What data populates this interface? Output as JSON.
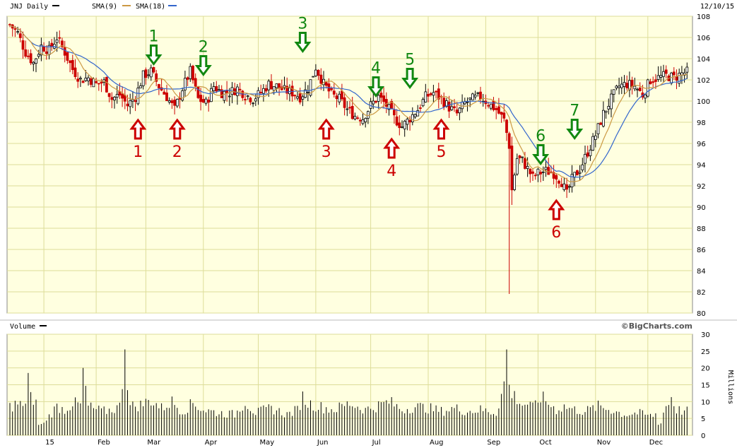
{
  "header": {
    "symbol_label": "JNJ Daily",
    "sma9_label": "SMA(9)",
    "sma18_label": "SMA(18)",
    "date": "12/10/15",
    "volume_label": "Volume",
    "copyright": "©BigCharts.com",
    "volume_unit": "Millions"
  },
  "colors": {
    "background": "#ffffe0",
    "grid": "#dddd99",
    "up_candle": "#000000",
    "down_candle": "#cc0000",
    "sma9": "#cc9944",
    "sma18": "#3366cc",
    "buy_marker": "#cc0000",
    "sell_marker": "#118811"
  },
  "chart_data": [
    {
      "type": "candlestick",
      "title": "JNJ Daily",
      "ylim": [
        80,
        108
      ],
      "y_ticks": [
        80,
        82,
        84,
        86,
        88,
        90,
        92,
        94,
        96,
        98,
        100,
        102,
        104,
        106,
        108
      ],
      "x_ticks": [
        "15",
        "Feb",
        "Mar",
        "Apr",
        "May",
        "Jun",
        "Jul",
        "Aug",
        "Sep",
        "Oct",
        "Nov",
        "Dec"
      ],
      "legend": [
        "JNJ Daily",
        "SMA(9)",
        "SMA(18)"
      ],
      "price_path": [
        [
          0,
          107.2
        ],
        [
          3,
          106.4
        ],
        [
          6,
          104.6
        ],
        [
          9,
          103.6
        ],
        [
          12,
          105.2
        ],
        [
          15,
          104.8
        ],
        [
          18,
          106
        ],
        [
          21,
          104.6
        ],
        [
          24,
          103
        ],
        [
          27,
          102
        ],
        [
          30,
          102.2
        ],
        [
          33,
          101.6
        ],
        [
          36,
          101.8
        ],
        [
          39,
          100.2
        ],
        [
          42,
          100.6
        ],
        [
          45,
          99.6
        ],
        [
          48,
          100.4
        ],
        [
          51,
          102.4
        ],
        [
          54,
          102.8
        ],
        [
          57,
          101.4
        ],
        [
          60,
          100.4
        ],
        [
          63,
          99.2
        ],
        [
          66,
          101.2
        ],
        [
          69,
          102.8
        ],
        [
          72,
          100.2
        ],
        [
          75,
          99.8
        ],
        [
          78,
          101.4
        ],
        [
          81,
          100.8
        ],
        [
          84,
          100.8
        ],
        [
          87,
          101.2
        ],
        [
          90,
          100.6
        ],
        [
          93,
          100.2
        ],
        [
          96,
          100.8
        ],
        [
          99,
          101.6
        ],
        [
          102,
          101.4
        ],
        [
          105,
          101
        ],
        [
          108,
          100.8
        ],
        [
          111,
          100.4
        ],
        [
          114,
          101.2
        ],
        [
          117,
          103.2
        ],
        [
          120,
          101.6
        ],
        [
          123,
          100.6
        ],
        [
          126,
          100.2
        ],
        [
          129,
          99.2
        ],
        [
          132,
          98.6
        ],
        [
          135,
          98.4
        ],
        [
          138,
          99.6
        ],
        [
          141,
          100.4
        ],
        [
          144,
          99.6
        ],
        [
          147,
          98.4
        ],
        [
          150,
          97.6
        ],
        [
          153,
          98.4
        ],
        [
          156,
          99.2
        ],
        [
          159,
          100.4
        ],
        [
          162,
          100.8
        ],
        [
          165,
          100.2
        ],
        [
          168,
          99.4
        ],
        [
          171,
          98.8
        ],
        [
          174,
          99.8
        ],
        [
          177,
          100.2
        ],
        [
          180,
          100.4
        ],
        [
          183,
          99.8
        ],
        [
          186,
          99.2
        ],
        [
          189,
          98.2
        ],
        [
          191,
          95.8
        ],
        [
          192,
          91.6
        ],
        [
          194,
          94.6
        ],
        [
          196,
          94.4
        ],
        [
          198,
          93.6
        ],
        [
          200,
          92.8
        ],
        [
          202,
          93.2
        ],
        [
          205,
          93.4
        ],
        [
          208,
          93.2
        ],
        [
          211,
          92.4
        ],
        [
          213,
          91.2
        ],
        [
          215,
          92.6
        ],
        [
          218,
          93.6
        ],
        [
          221,
          95.2
        ],
        [
          224,
          96.8
        ],
        [
          227,
          98.8
        ],
        [
          230,
          100.2
        ],
        [
          233,
          101.4
        ],
        [
          236,
          101.6
        ],
        [
          239,
          101.4
        ],
        [
          242,
          100.6
        ],
        [
          245,
          102
        ],
        [
          248,
          102.2
        ],
        [
          251,
          102.4
        ],
        [
          254,
          102.2
        ],
        [
          257,
          102.6
        ],
        [
          260,
          102.8
        ]
      ],
      "candle_count": 260,
      "sma9_periods": 9,
      "sma18_periods": 18,
      "buy_markers": [
        {
          "label": "1",
          "day": 49,
          "price": 98.2
        },
        {
          "label": "2",
          "day": 64,
          "price": 98.2
        },
        {
          "label": "3",
          "day": 121,
          "price": 98.2
        },
        {
          "label": "4",
          "day": 146,
          "price": 96.4
        },
        {
          "label": "5",
          "day": 165,
          "price": 98.2
        },
        {
          "label": "6",
          "day": 209,
          "price": 90.6
        }
      ],
      "sell_markers": [
        {
          "label": "1",
          "day": 55,
          "price": 103.5
        },
        {
          "label": "2",
          "day": 74,
          "price": 102.5
        },
        {
          "label": "3",
          "day": 112,
          "price": 104.7
        },
        {
          "label": "4",
          "day": 140,
          "price": 100.5
        },
        {
          "label": "5",
          "day": 153,
          "price": 101.3
        },
        {
          "label": "6",
          "day": 203,
          "price": 94.1
        },
        {
          "label": "7",
          "day": 216,
          "price": 96.5
        }
      ]
    },
    {
      "type": "bar",
      "title": "Volume",
      "ylabel": "Millions",
      "ylim": [
        0,
        30
      ],
      "y_ticks": [
        0,
        5,
        10,
        15,
        20,
        25,
        30
      ],
      "volume_path": [
        [
          0,
          9
        ],
        [
          3,
          10
        ],
        [
          6,
          8.5
        ],
        [
          7,
          18.5
        ],
        [
          9,
          9
        ],
        [
          10,
          10
        ],
        [
          12,
          4
        ],
        [
          15,
          6
        ],
        [
          18,
          9
        ],
        [
          21,
          8
        ],
        [
          24,
          10
        ],
        [
          27,
          9.5
        ],
        [
          28,
          20
        ],
        [
          30,
          9
        ],
        [
          33,
          8
        ],
        [
          36,
          7.5
        ],
        [
          39,
          8
        ],
        [
          42,
          9
        ],
        [
          44,
          25.5
        ],
        [
          46,
          9
        ],
        [
          50,
          9.5
        ],
        [
          54,
          11
        ],
        [
          58,
          8.5
        ],
        [
          62,
          10.5
        ],
        [
          66,
          7.5
        ],
        [
          70,
          10
        ],
        [
          74,
          8
        ],
        [
          80,
          7
        ],
        [
          86,
          6.5
        ],
        [
          90,
          10.5
        ],
        [
          94,
          7
        ],
        [
          100,
          8.5
        ],
        [
          106,
          6.5
        ],
        [
          110,
          8
        ],
        [
          112,
          12
        ],
        [
          114,
          10
        ],
        [
          118,
          9
        ],
        [
          124,
          8
        ],
        [
          130,
          10
        ],
        [
          136,
          8
        ],
        [
          140,
          9
        ],
        [
          145,
          10.5
        ],
        [
          150,
          8
        ],
        [
          155,
          9
        ],
        [
          160,
          8.5
        ],
        [
          165,
          7.5
        ],
        [
          170,
          8.5
        ],
        [
          175,
          7.5
        ],
        [
          180,
          8
        ],
        [
          186,
          7
        ],
        [
          189,
          16
        ],
        [
          190,
          25.5
        ],
        [
          191,
          15
        ],
        [
          192,
          13
        ],
        [
          194,
          11.5
        ],
        [
          196,
          9.5
        ],
        [
          198,
          10
        ],
        [
          200,
          8.5
        ],
        [
          203,
          12
        ],
        [
          206,
          10
        ],
        [
          209,
          8
        ],
        [
          212,
          9
        ],
        [
          216,
          8
        ],
        [
          220,
          7.5
        ],
        [
          225,
          9
        ],
        [
          230,
          8
        ],
        [
          235,
          6.5
        ],
        [
          240,
          7
        ],
        [
          245,
          6
        ],
        [
          250,
          7.5
        ],
        [
          253,
          12
        ],
        [
          255,
          8
        ],
        [
          258,
          7.5
        ],
        [
          260,
          7.5
        ]
      ],
      "low_volume_days": [
        11,
        12,
        13,
        248,
        249
      ]
    }
  ]
}
